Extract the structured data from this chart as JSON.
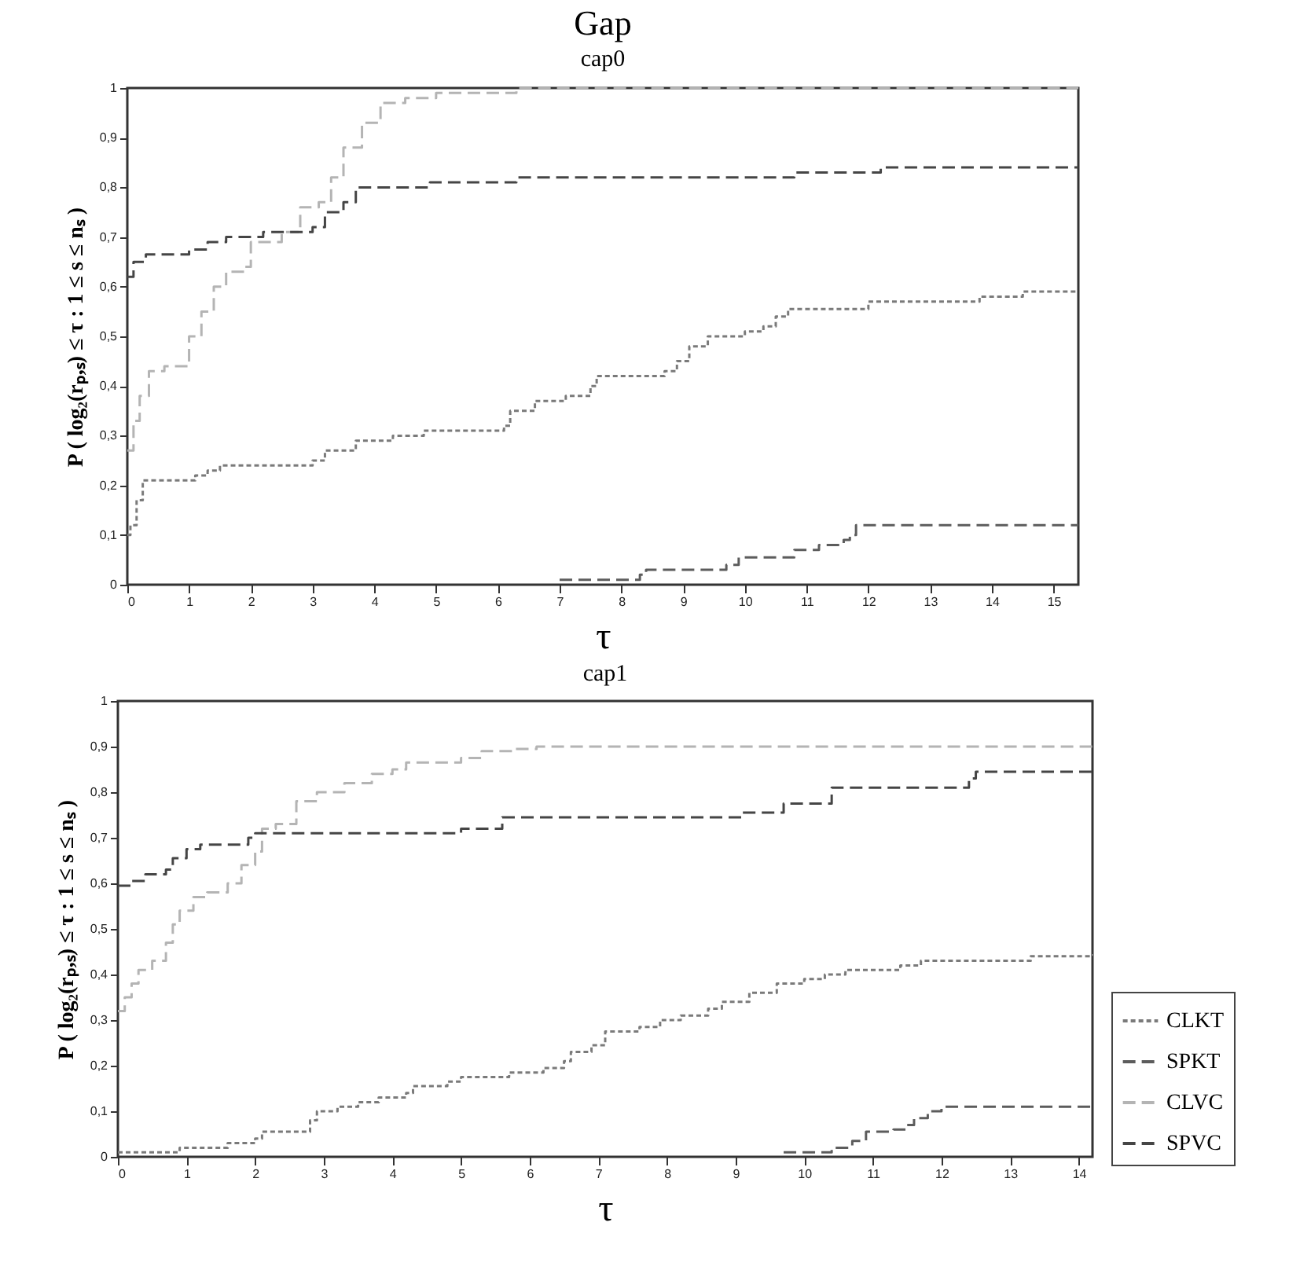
{
  "chart_data": [
    {
      "type": "step",
      "title": "Gap",
      "subtitle": "cap0",
      "xlabel": "τ",
      "ylabel": "P ( log₂(rₚ,ₛ) ≤ τ : 1 ≤ s ≤ nₛ )",
      "xlim": [
        0,
        15.4
      ],
      "ylim": [
        0,
        1
      ],
      "xticks": [
        0,
        1,
        2,
        3,
        4,
        5,
        6,
        7,
        8,
        9,
        10,
        11,
        12,
        13,
        14,
        15
      ],
      "yticks": [
        {
          "value": 0,
          "label": "0"
        },
        {
          "value": 0.1,
          "label": "0,1"
        },
        {
          "value": 0.2,
          "label": "0,2"
        },
        {
          "value": 0.3,
          "label": "0,3"
        },
        {
          "value": 0.4,
          "label": "0,4"
        },
        {
          "value": 0.5,
          "label": "0,5"
        },
        {
          "value": 0.6,
          "label": "0,6"
        },
        {
          "value": 0.7,
          "label": "0,7"
        },
        {
          "value": 0.8,
          "label": "0,8"
        },
        {
          "value": 0.9,
          "label": "0,9"
        },
        {
          "value": 1,
          "label": "1"
        }
      ],
      "legend": false,
      "series": [
        {
          "color": "#7a7a7a",
          "line_style": "dotted",
          "x": [
            0,
            0.05,
            0.15,
            0.25,
            1.1,
            1.3,
            1.5,
            3.0,
            3.2,
            3.7,
            4.3,
            4.8,
            6.1,
            6.2,
            6.6,
            7.1,
            7.5,
            7.6,
            8.7,
            8.9,
            9.1,
            9.4,
            10.0,
            10.3,
            10.5,
            10.7,
            12.0,
            13.8,
            14.5,
            15.4
          ],
          "values": [
            0.1,
            0.12,
            0.17,
            0.21,
            0.22,
            0.23,
            0.24,
            0.25,
            0.27,
            0.29,
            0.3,
            0.31,
            0.32,
            0.35,
            0.37,
            0.38,
            0.4,
            0.42,
            0.43,
            0.45,
            0.48,
            0.5,
            0.51,
            0.52,
            0.54,
            0.555,
            0.57,
            0.58,
            0.59,
            0.59
          ]
        },
        {
          "color": "#5c5c5c",
          "line_style": "dashed",
          "x": [
            7.0,
            8.3,
            8.4,
            9.7,
            9.9,
            10.8,
            11.2,
            11.6,
            11.7,
            11.8,
            15.4
          ],
          "values": [
            0.01,
            0.02,
            0.03,
            0.04,
            0.055,
            0.07,
            0.08,
            0.09,
            0.1,
            0.12,
            0.12
          ]
        },
        {
          "color": "#b4b4b4",
          "line_style": "dashed",
          "x": [
            0,
            0.1,
            0.2,
            0.35,
            0.6,
            1.0,
            1.2,
            1.4,
            1.6,
            1.9,
            2.0,
            2.5,
            2.8,
            3.1,
            3.3,
            3.5,
            3.8,
            4.1,
            4.5,
            5.0,
            6.3,
            15.4
          ],
          "values": [
            0.27,
            0.33,
            0.38,
            0.43,
            0.44,
            0.5,
            0.55,
            0.6,
            0.63,
            0.64,
            0.69,
            0.71,
            0.76,
            0.77,
            0.82,
            0.88,
            0.93,
            0.97,
            0.98,
            0.99,
            1.0,
            1.0
          ]
        },
        {
          "color": "#454545",
          "line_style": "dashed",
          "x": [
            0,
            0.1,
            0.3,
            1.0,
            1.3,
            1.6,
            2.2,
            3.0,
            3.2,
            3.5,
            3.7,
            4.9,
            6.3,
            10.8,
            12.2,
            15.4
          ],
          "values": [
            0.62,
            0.65,
            0.665,
            0.675,
            0.69,
            0.7,
            0.71,
            0.72,
            0.75,
            0.77,
            0.8,
            0.81,
            0.82,
            0.83,
            0.84,
            0.84
          ]
        }
      ]
    },
    {
      "type": "step",
      "subtitle": "cap1",
      "xlabel": "τ",
      "ylabel": "P ( log₂(rₚ,ₛ) ≤ τ : 1 ≤ s ≤ nₛ )",
      "xlim": [
        0,
        14.2
      ],
      "ylim": [
        0,
        1
      ],
      "xticks": [
        0,
        1,
        2,
        3,
        4,
        5,
        6,
        7,
        8,
        9,
        10,
        11,
        12,
        13,
        14
      ],
      "yticks": [
        {
          "value": 0,
          "label": "0"
        },
        {
          "value": 0.1,
          "label": "0,1"
        },
        {
          "value": 0.2,
          "label": "0,2"
        },
        {
          "value": 0.3,
          "label": "0,3"
        },
        {
          "value": 0.4,
          "label": "0,4"
        },
        {
          "value": 0.5,
          "label": "0,5"
        },
        {
          "value": 0.6,
          "label": "0,6"
        },
        {
          "value": 0.7,
          "label": "0,7"
        },
        {
          "value": 0.8,
          "label": "0,8"
        },
        {
          "value": 0.9,
          "label": "0,9"
        },
        {
          "value": 1,
          "label": "1"
        }
      ],
      "legend": "bottom right",
      "series": [
        {
          "name": "CLKT",
          "color": "#7a7a7a",
          "line_style": "dotted",
          "x": [
            0,
            0.9,
            1.6,
            2.0,
            2.1,
            2.8,
            2.9,
            3.2,
            3.5,
            3.8,
            4.2,
            4.3,
            4.8,
            5.0,
            5.7,
            6.2,
            6.5,
            6.6,
            6.9,
            7.1,
            7.6,
            7.9,
            8.2,
            8.6,
            8.8,
            9.2,
            9.6,
            10.0,
            10.3,
            10.6,
            11.4,
            11.7,
            13.3,
            14.2
          ],
          "values": [
            0.01,
            0.02,
            0.03,
            0.04,
            0.055,
            0.08,
            0.1,
            0.11,
            0.12,
            0.13,
            0.14,
            0.155,
            0.165,
            0.175,
            0.185,
            0.195,
            0.21,
            0.23,
            0.245,
            0.275,
            0.285,
            0.3,
            0.31,
            0.325,
            0.34,
            0.36,
            0.38,
            0.39,
            0.4,
            0.41,
            0.42,
            0.43,
            0.44,
            0.445
          ]
        },
        {
          "name": "SPKT",
          "color": "#5c5c5c",
          "line_style": "dashed",
          "x": [
            9.7,
            10.4,
            10.7,
            10.9,
            11.3,
            11.5,
            11.6,
            11.8,
            12.0,
            14.2
          ],
          "values": [
            0.01,
            0.02,
            0.035,
            0.055,
            0.06,
            0.07,
            0.085,
            0.1,
            0.11,
            0.11
          ]
        },
        {
          "name": "CLVC",
          "color": "#b4b4b4",
          "line_style": "dashed",
          "x": [
            0,
            0.1,
            0.2,
            0.3,
            0.5,
            0.7,
            0.8,
            0.9,
            1.1,
            1.3,
            1.6,
            1.8,
            2.0,
            2.1,
            2.3,
            2.6,
            2.9,
            3.3,
            3.7,
            4.0,
            4.2,
            5.0,
            5.3,
            5.8,
            6.1,
            14.2
          ],
          "values": [
            0.32,
            0.35,
            0.38,
            0.41,
            0.43,
            0.47,
            0.51,
            0.54,
            0.57,
            0.58,
            0.6,
            0.64,
            0.67,
            0.72,
            0.73,
            0.78,
            0.8,
            0.82,
            0.84,
            0.85,
            0.865,
            0.875,
            0.89,
            0.895,
            0.9,
            0.9
          ]
        },
        {
          "name": "SPVC",
          "color": "#454545",
          "line_style": "dashed",
          "x": [
            0,
            0.2,
            0.4,
            0.7,
            0.8,
            1.0,
            1.2,
            1.9,
            2.0,
            5.0,
            5.6,
            9.1,
            9.7,
            10.4,
            12.4,
            12.5,
            14.2
          ],
          "values": [
            0.595,
            0.605,
            0.62,
            0.63,
            0.655,
            0.675,
            0.685,
            0.7,
            0.71,
            0.72,
            0.745,
            0.755,
            0.775,
            0.81,
            0.83,
            0.845,
            0.845
          ]
        }
      ]
    }
  ]
}
